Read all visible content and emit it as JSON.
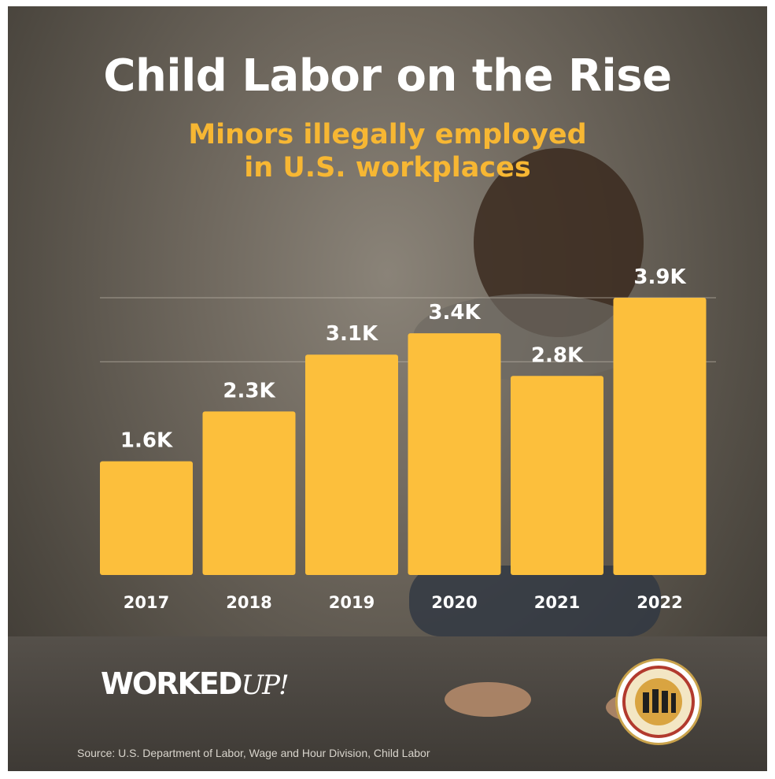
{
  "header": {
    "title": "Child Labor on the Rise",
    "subtitle_line1": "Minors illegally employed",
    "subtitle_line2": "in U.S. workplaces"
  },
  "chart_data": {
    "type": "bar",
    "title": "Child Labor on the Rise",
    "subtitle": "Minors illegally employed in U.S. workplaces",
    "categories": [
      "2017",
      "2018",
      "2019",
      "2020",
      "2021",
      "2022"
    ],
    "values": [
      1600,
      2300,
      3100,
      3400,
      2800,
      3900
    ],
    "data_labels": [
      "1.6K",
      "2.3K",
      "3.1K",
      "3.4K",
      "2.8K",
      "3.9K"
    ],
    "xlabel": "",
    "ylabel": "",
    "ylim": [
      0,
      3900
    ],
    "gridlines": [
      3000,
      3900
    ],
    "bar_color": "#fcbf3c",
    "grid": true
  },
  "branding": {
    "logo_main": "WORKED",
    "logo_script": "UP!"
  },
  "footer": {
    "source": "Source: U.S. Department of Labor, Wage and Hour Division, Child Labor"
  },
  "colors": {
    "title": "#ffffff",
    "subtitle": "#f7b733",
    "bar": "#fcbf3c"
  }
}
